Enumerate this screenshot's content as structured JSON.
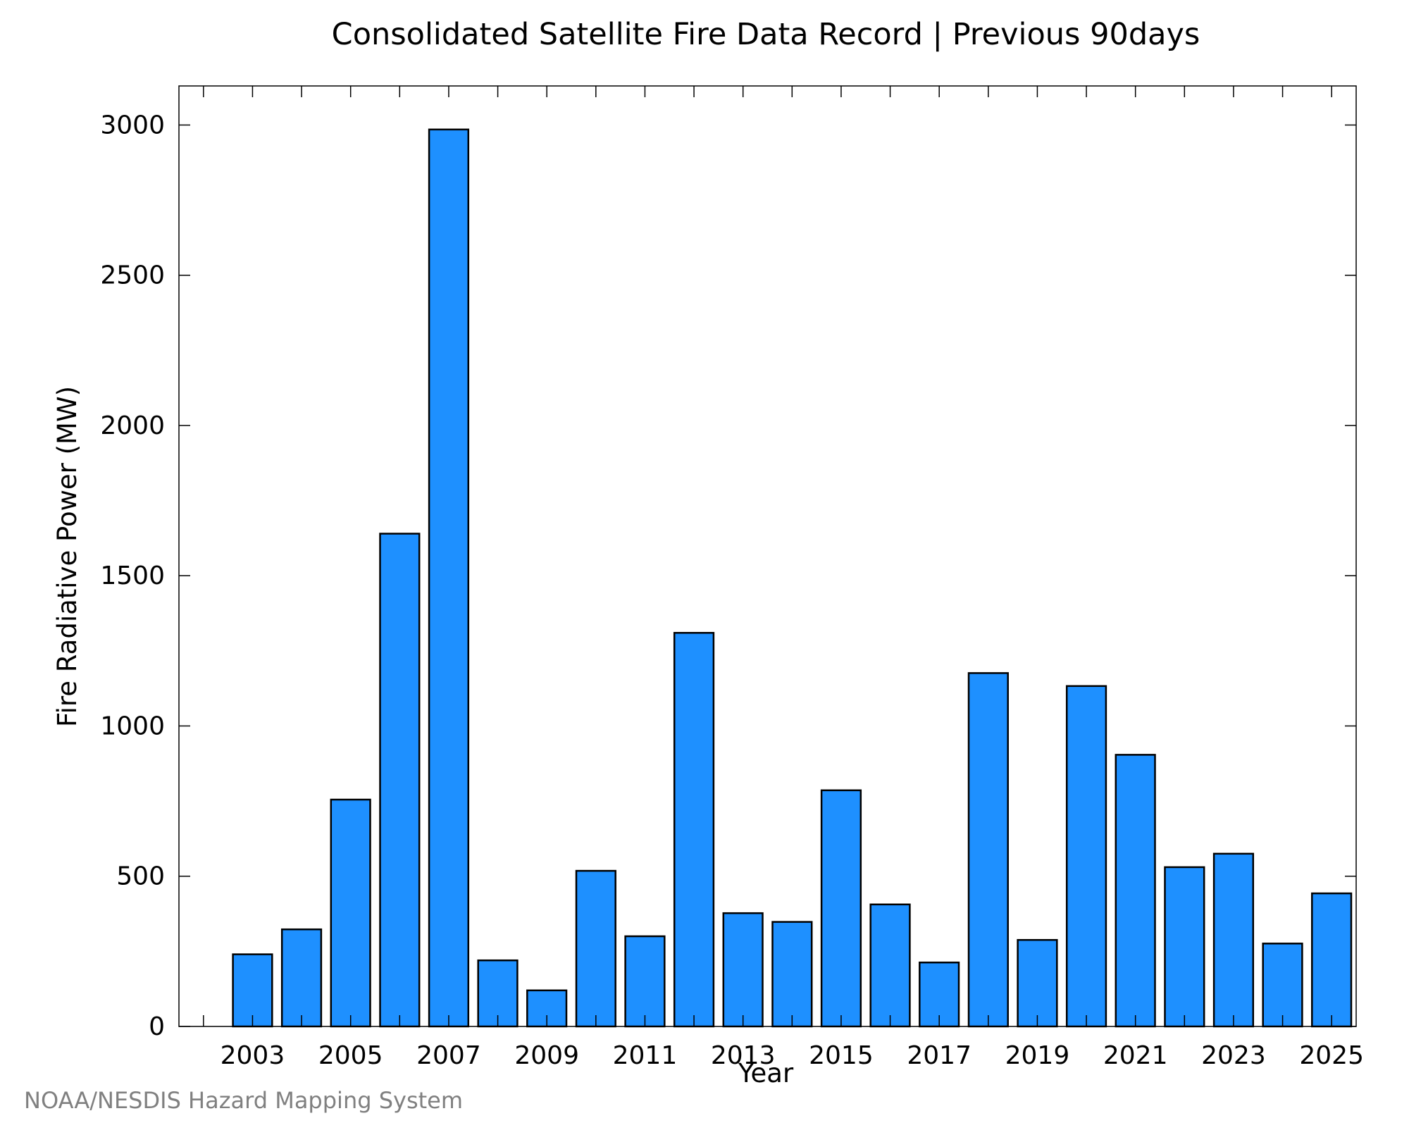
{
  "chart_data": {
    "type": "bar",
    "title": "Consolidated Satellite Fire Data Record | Previous 90days",
    "xlabel": "Year",
    "ylabel": "Fire Radiative Power (MW)",
    "credit": "NOAA/NESDIS Hazard Mapping System",
    "x": [
      2003,
      2004,
      2005,
      2006,
      2007,
      2008,
      2009,
      2010,
      2011,
      2012,
      2013,
      2014,
      2015,
      2016,
      2017,
      2018,
      2019,
      2020,
      2021,
      2022,
      2023,
      2024,
      2025
    ],
    "values": [
      240,
      323,
      755,
      1640,
      2985,
      220,
      120,
      518,
      300,
      1310,
      377,
      348,
      786,
      406,
      213,
      1176,
      288,
      1133,
      904,
      530,
      575,
      276,
      443
    ],
    "xlim": [
      2001.5,
      2025.5
    ],
    "ylim": [
      0,
      3130
    ],
    "xticks": [
      2003,
      2005,
      2007,
      2009,
      2011,
      2013,
      2015,
      2017,
      2019,
      2021,
      2023,
      2025
    ],
    "xticks_minor": [
      2002,
      2004,
      2006,
      2008,
      2010,
      2012,
      2014,
      2016,
      2018,
      2020,
      2022,
      2024
    ],
    "yticks": [
      0,
      500,
      1000,
      1500,
      2000,
      2500,
      3000
    ],
    "grid": false,
    "legend": "none",
    "bar_color": "#1e90ff",
    "edge_color": "#000000",
    "credit_color": "#808080"
  }
}
